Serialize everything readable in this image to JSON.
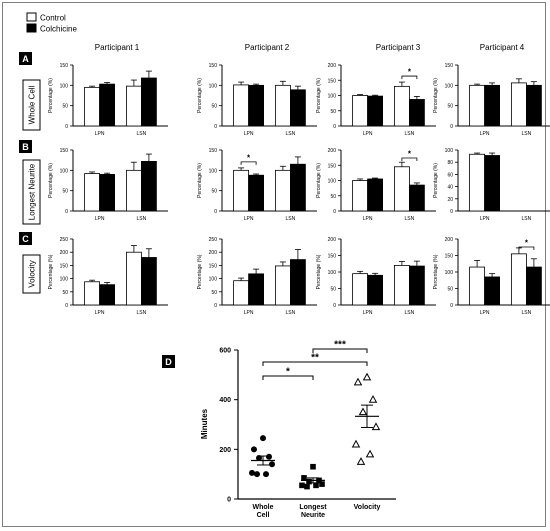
{
  "legend": {
    "items": [
      {
        "label": "Control",
        "fill": "#ffffff"
      },
      {
        "label": "Colchicine",
        "fill": "#000000"
      }
    ]
  },
  "participants": [
    "Participant 1",
    "Participant 2",
    "Participant 3",
    "Participant 4"
  ],
  "rows": [
    {
      "letter": "A",
      "label": "Whole Cell"
    },
    {
      "letter": "B",
      "label": "Longest Neurite"
    },
    {
      "letter": "C",
      "label": "Volocity"
    }
  ],
  "panel_d_letter": "D",
  "chart_data": [
    {
      "panel": "A",
      "participant": "Participant 1",
      "type": "bar",
      "categories": [
        "LPN",
        "LSN"
      ],
      "series": [
        {
          "name": "Control",
          "values": [
            95,
            98
          ],
          "errors": [
            3,
            15
          ]
        },
        {
          "name": "Colchicine",
          "values": [
            103,
            118
          ],
          "errors": [
            4,
            17
          ]
        }
      ],
      "ylabel": "Percentage (%)",
      "ylim": [
        0,
        150
      ],
      "yticks": [
        "0",
        "50",
        "100",
        "150"
      ],
      "significance": []
    },
    {
      "panel": "A",
      "participant": "Participant 2",
      "type": "bar",
      "categories": [
        "LPN",
        "LSN"
      ],
      "series": [
        {
          "name": "Control",
          "values": [
            101,
            100
          ],
          "errors": [
            7,
            10
          ]
        },
        {
          "name": "Colchicine",
          "values": [
            100,
            89
          ],
          "errors": [
            3,
            9
          ]
        }
      ],
      "ylabel": "Percentage (%)",
      "ylim": [
        0,
        150
      ],
      "yticks": [
        "0",
        "50",
        "100",
        "150"
      ],
      "significance": []
    },
    {
      "panel": "A",
      "participant": "Participant 3",
      "type": "bar",
      "categories": [
        "LPN",
        "LSN"
      ],
      "series": [
        {
          "name": "Control",
          "values": [
            100,
            130
          ],
          "errors": [
            3,
            14
          ]
        },
        {
          "name": "Colchicine",
          "values": [
            98,
            87
          ],
          "errors": [
            3,
            10
          ]
        }
      ],
      "ylabel": "Percentage (%)",
      "ylim": [
        0,
        200
      ],
      "yticks": [
        "0",
        "50",
        "100",
        "150",
        "200"
      ],
      "significance": [
        {
          "category": "LSN",
          "label": "*"
        }
      ]
    },
    {
      "panel": "A",
      "participant": "Participant 4",
      "type": "bar",
      "categories": [
        "LPN",
        "LSN"
      ],
      "series": [
        {
          "name": "Control",
          "values": [
            100,
            106
          ],
          "errors": [
            3,
            10
          ]
        },
        {
          "name": "Colchicine",
          "values": [
            100,
            100
          ],
          "errors": [
            6,
            9
          ]
        }
      ],
      "ylabel": "Percentage (%)",
      "ylim": [
        0,
        150
      ],
      "yticks": [
        "0",
        "50",
        "100",
        "150"
      ],
      "significance": []
    },
    {
      "panel": "B",
      "participant": "Participant 1",
      "type": "bar",
      "categories": [
        "LPN",
        "LSN"
      ],
      "series": [
        {
          "name": "Control",
          "values": [
            92,
            100
          ],
          "errors": [
            4,
            20
          ]
        },
        {
          "name": "Colchicine",
          "values": [
            90,
            122
          ],
          "errors": [
            3,
            18
          ]
        }
      ],
      "ylabel": "Percentage (%)",
      "ylim": [
        0,
        150
      ],
      "yticks": [
        "0",
        "50",
        "100",
        "150"
      ],
      "significance": []
    },
    {
      "panel": "B",
      "participant": "Participant 2",
      "type": "bar",
      "categories": [
        "LPN",
        "LSN"
      ],
      "series": [
        {
          "name": "Control",
          "values": [
            100,
            100
          ],
          "errors": [
            6,
            10
          ]
        },
        {
          "name": "Colchicine",
          "values": [
            88,
            115
          ],
          "errors": [
            3,
            18
          ]
        }
      ],
      "ylabel": "Percentage (%)",
      "ylim": [
        0,
        150
      ],
      "yticks": [
        "0",
        "50",
        "100",
        "150"
      ],
      "significance": [
        {
          "category": "LPN",
          "label": "*"
        }
      ]
    },
    {
      "panel": "B",
      "participant": "Participant 3",
      "type": "bar",
      "categories": [
        "LPN",
        "LSN"
      ],
      "series": [
        {
          "name": "Control",
          "values": [
            100,
            145
          ],
          "errors": [
            5,
            15
          ]
        },
        {
          "name": "Colchicine",
          "values": [
            105,
            85
          ],
          "errors": [
            3,
            7
          ]
        }
      ],
      "ylabel": "Percentage (%)",
      "ylim": [
        0,
        200
      ],
      "yticks": [
        "0",
        "50",
        "100",
        "150",
        "200"
      ],
      "significance": [
        {
          "category": "LSN",
          "label": "*"
        }
      ]
    },
    {
      "panel": "B",
      "participant": "Participant 4",
      "type": "bar",
      "categories": [
        "LPN",
        "LSN"
      ],
      "series": [
        {
          "name": "Control",
          "values": [
            93,
            null
          ],
          "errors": [
            2,
            null
          ]
        },
        {
          "name": "Colchicine",
          "values": [
            91,
            null
          ],
          "errors": [
            4,
            null
          ]
        }
      ],
      "ylabel": "Percentage (%)",
      "ylim": [
        0,
        100
      ],
      "yticks": [
        "0",
        "20",
        "40",
        "60",
        "80",
        "100"
      ],
      "significance": []
    },
    {
      "panel": "C",
      "participant": "Participant 1",
      "type": "bar",
      "categories": [
        "LPN",
        "LSN"
      ],
      "series": [
        {
          "name": "Control",
          "values": [
            88,
            200
          ],
          "errors": [
            6,
            25
          ]
        },
        {
          "name": "Colchicine",
          "values": [
            77,
            180
          ],
          "errors": [
            8,
            33
          ]
        }
      ],
      "ylabel": "Percentage (%)",
      "ylim": [
        0,
        250
      ],
      "yticks": [
        "0",
        "50",
        "100",
        "150",
        "200",
        "250"
      ],
      "significance": []
    },
    {
      "panel": "C",
      "participant": "Participant 2",
      "type": "bar",
      "categories": [
        "LPN",
        "LSN"
      ],
      "series": [
        {
          "name": "Control",
          "values": [
            92,
            148
          ],
          "errors": [
            10,
            15
          ]
        },
        {
          "name": "Colchicine",
          "values": [
            118,
            172
          ],
          "errors": [
            18,
            38
          ]
        }
      ],
      "ylabel": "Percentage (%)",
      "ylim": [
        0,
        250
      ],
      "yticks": [
        "0",
        "50",
        "100",
        "150",
        "200",
        "250"
      ],
      "significance": []
    },
    {
      "panel": "C",
      "participant": "Participant 3",
      "type": "bar",
      "categories": [
        "LPN",
        "LSN"
      ],
      "series": [
        {
          "name": "Control",
          "values": [
            95,
            120
          ],
          "errors": [
            7,
            12
          ]
        },
        {
          "name": "Colchicine",
          "values": [
            90,
            118
          ],
          "errors": [
            6,
            15
          ]
        }
      ],
      "ylabel": "Percentage (%)",
      "ylim": [
        0,
        200
      ],
      "yticks": [
        "0",
        "50",
        "100",
        "150",
        "200"
      ],
      "significance": []
    },
    {
      "panel": "C",
      "participant": "Participant 4",
      "type": "bar",
      "categories": [
        "LPN",
        "LSN"
      ],
      "series": [
        {
          "name": "Control",
          "values": [
            115,
            155
          ],
          "errors": [
            20,
            18
          ]
        },
        {
          "name": "Colchicine",
          "values": [
            85,
            115
          ],
          "errors": [
            10,
            25
          ]
        }
      ],
      "ylabel": "Percentage (%)",
      "ylim": [
        0,
        200
      ],
      "yticks": [
        "0",
        "50",
        "100",
        "150",
        "200"
      ],
      "significance": [
        {
          "category": "LSN",
          "label": "*"
        }
      ]
    },
    {
      "panel": "D",
      "type": "scatter",
      "categories": [
        "Whole\nCell",
        "Longest\nNeurite",
        "Volocity"
      ],
      "ylabel": "Minutes",
      "ylim": [
        0,
        600
      ],
      "yticks": [
        "0",
        "200",
        "400",
        "600"
      ],
      "groups": [
        {
          "category": "Whole\nCell",
          "marker": "circle",
          "values": [
            245,
            200,
            170,
            165,
            140,
            105,
            100,
            100
          ],
          "mean": 155,
          "sem": 18
        },
        {
          "category": "Longest\nNeurite",
          "marker": "square",
          "values": [
            130,
            85,
            75,
            70,
            60,
            55,
            55,
            50
          ],
          "mean": 75,
          "sem": 10
        },
        {
          "category": "Volocity",
          "marker": "triangle",
          "values": [
            490,
            470,
            400,
            350,
            290,
            220,
            180,
            150
          ],
          "mean": 333,
          "sem": 45
        }
      ],
      "significance": [
        {
          "from": "Whole\nCell",
          "to": "Longest\nNeurite",
          "label": "*"
        },
        {
          "from": "Whole\nCell",
          "to": "Volocity",
          "label": "**"
        },
        {
          "from": "Longest\nNeurite",
          "to": "Volocity",
          "label": "***"
        }
      ]
    }
  ]
}
